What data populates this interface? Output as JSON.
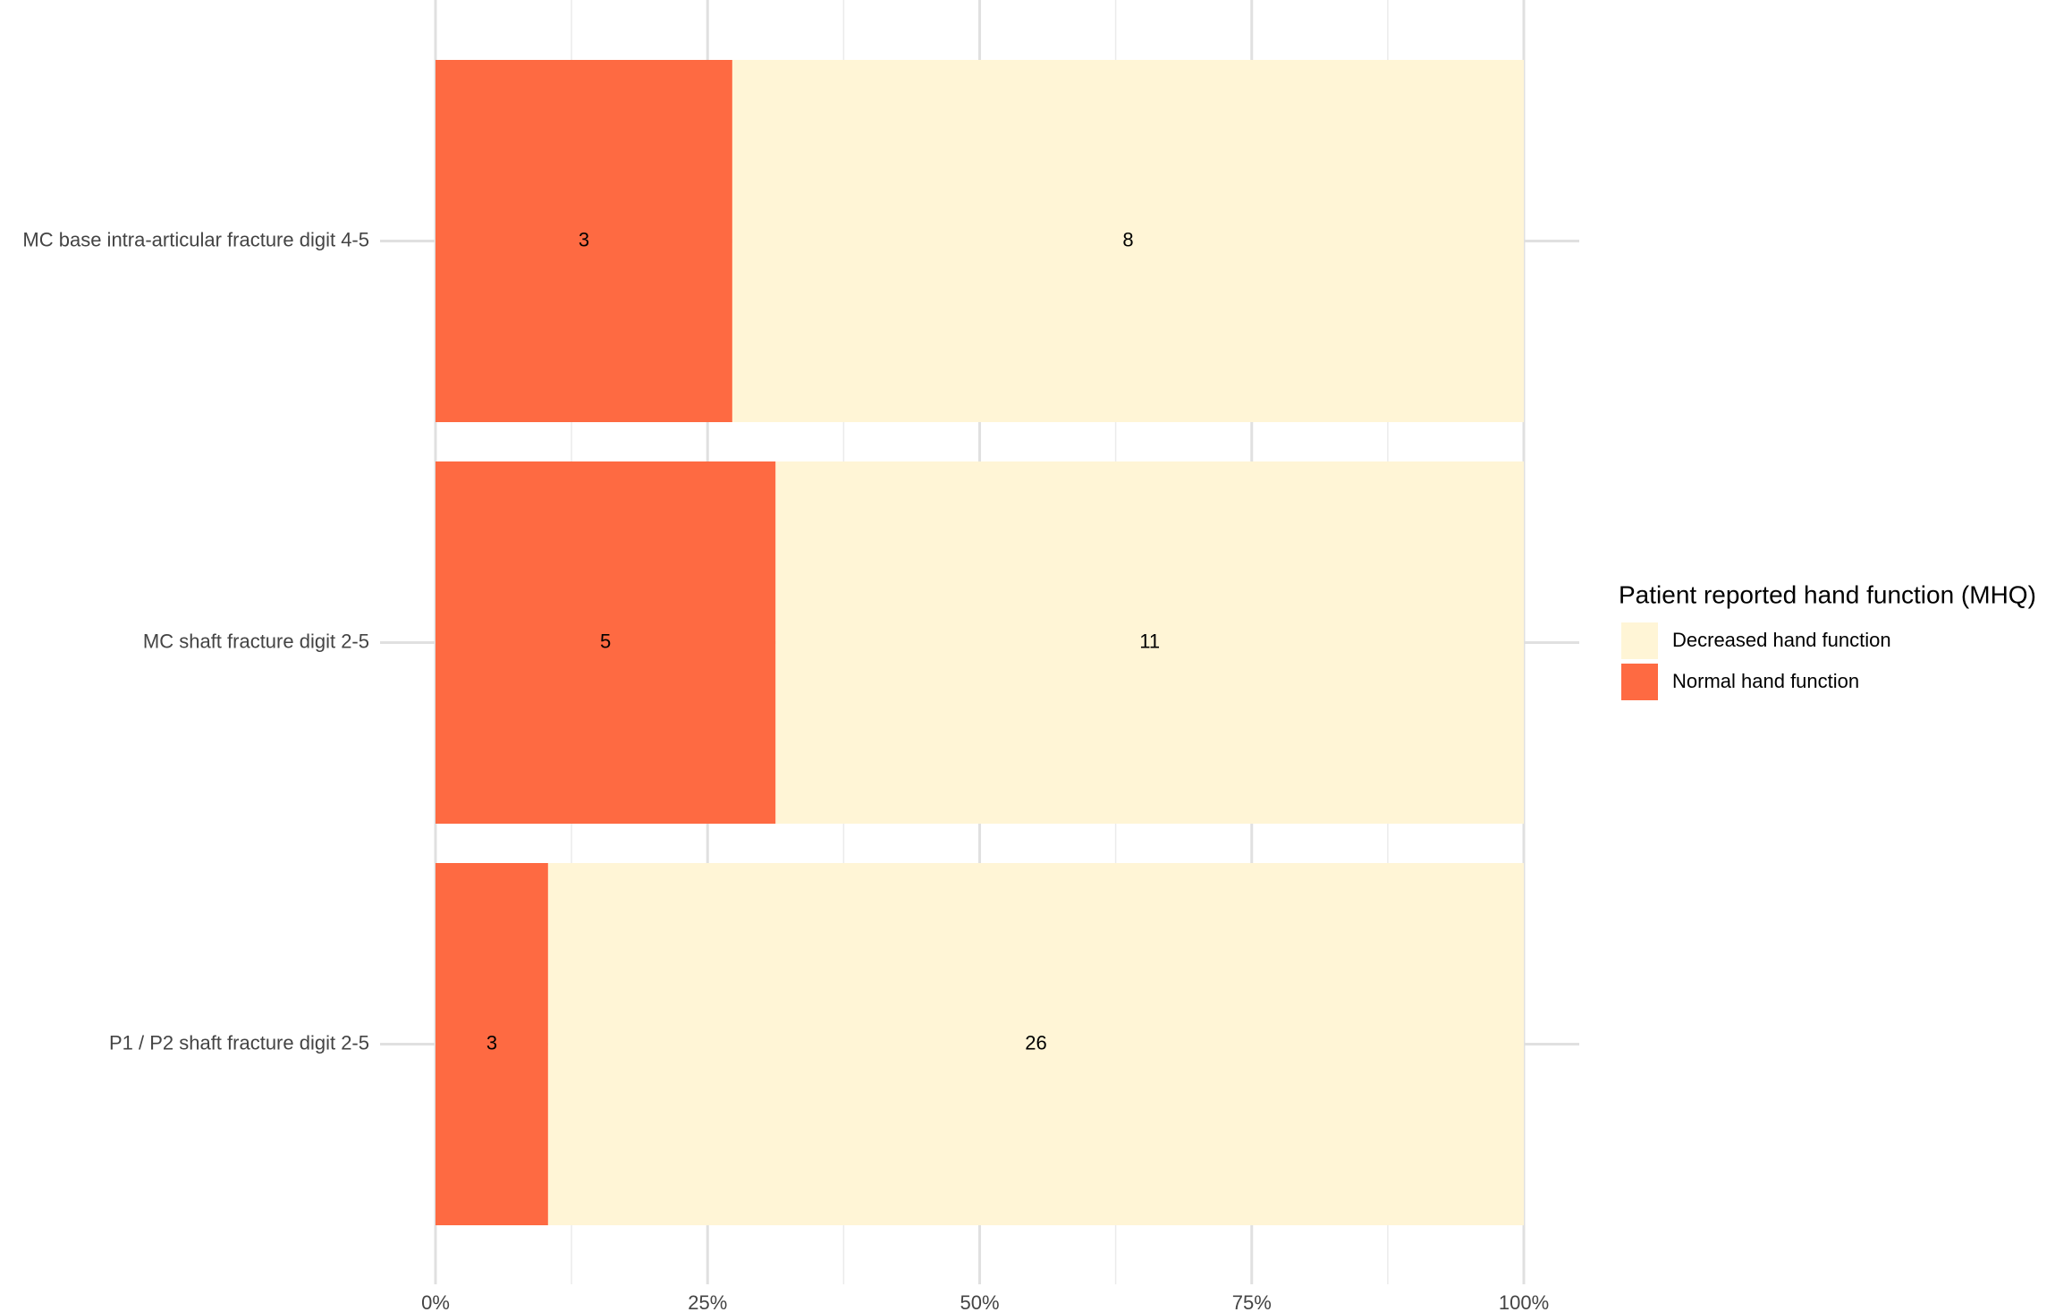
{
  "chart_data": {
    "type": "bar",
    "orientation": "horizontal",
    "stacked": "percent",
    "categories": [
      "MC base intra-articular fracture digit 4-5",
      "MC shaft fracture digit 2-5",
      "P1 / P2 shaft fracture digit 2-5"
    ],
    "series": [
      {
        "name": "Decreased hand function",
        "color": "#fff5d6",
        "values": [
          8,
          11,
          26
        ]
      },
      {
        "name": "Normal hand function",
        "color": "#fe6a42",
        "values": [
          3,
          5,
          3
        ]
      }
    ],
    "xlim": [
      0,
      100
    ],
    "xticks": [
      {
        "value": 0,
        "label": "0%"
      },
      {
        "value": 25,
        "label": "25%"
      },
      {
        "value": 50,
        "label": "50%"
      },
      {
        "value": 75,
        "label": "75%"
      },
      {
        "value": 100,
        "label": "100%"
      }
    ],
    "grid": true,
    "legend_title": "Patient reported hand function (MHQ)",
    "legend_position": "right"
  }
}
